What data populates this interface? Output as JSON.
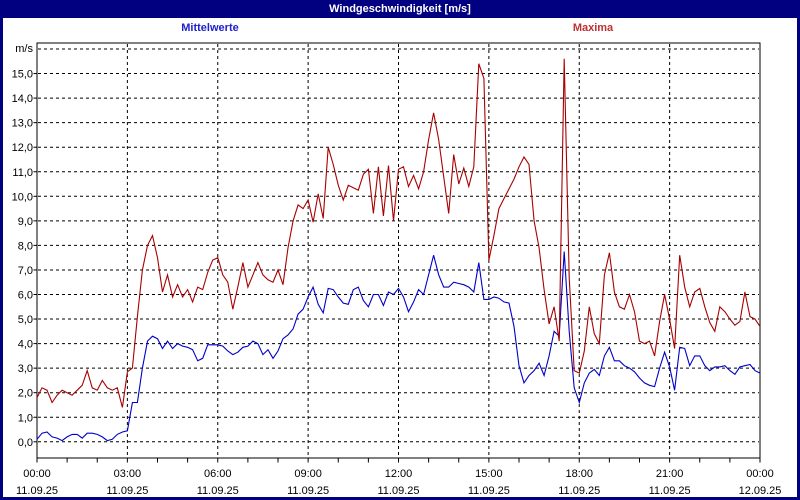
{
  "window": {
    "title": "Windgeschwindigkeit [m/s]"
  },
  "colors": {
    "frame": "#000080",
    "title_bar_bg": "#000080",
    "title_text": "#ffffff",
    "background": "#ffffff",
    "grid": "#000000",
    "axis": "#000000",
    "mean_line": "#0000C8",
    "max_line": "#A80000",
    "mean_label_text": "#2020CC",
    "max_label_text": "#C03030"
  },
  "legend": {
    "mean_label": "Mittelwerte",
    "max_label": "Maxima"
  },
  "chart_data": {
    "type": "line",
    "title": "Windgeschwindigkeit [m/s]",
    "ylabel": "m/s",
    "ylim": [
      0,
      16
    ],
    "y_tick_step": 1,
    "grid": "dashed",
    "legend_position": "top",
    "x_interval_minutes": 10,
    "x_span_hours": 24,
    "x_major_tick_hours": 3,
    "x_minor_tick_hours": 1,
    "y_tick_labels": [
      "0,0",
      "1,0",
      "2,0",
      "3,0",
      "4,0",
      "5,0",
      "6,0",
      "7,0",
      "8,0",
      "9,0",
      "10,0",
      "11,0",
      "12,0",
      "13,0",
      "14,0",
      "15,0"
    ],
    "x_tick_labels": [
      {
        "time": "00:00",
        "date": "11.09.25"
      },
      {
        "time": "03:00",
        "date": "11.09.25"
      },
      {
        "time": "06:00",
        "date": "11.09.25"
      },
      {
        "time": "09:00",
        "date": "11.09.25"
      },
      {
        "time": "12:00",
        "date": "11.09.25"
      },
      {
        "time": "15:00",
        "date": "11.09.25"
      },
      {
        "time": "18:00",
        "date": "11.09.25"
      },
      {
        "time": "21:00",
        "date": "11.09.25"
      },
      {
        "time": "00:00",
        "date": "12.09.25"
      }
    ],
    "series": [
      {
        "name": "Mittelwerte",
        "color": "#0000C8",
        "values": [
          0.1,
          0.35,
          0.4,
          0.2,
          0.15,
          0.05,
          0.2,
          0.3,
          0.3,
          0.15,
          0.35,
          0.35,
          0.3,
          0.2,
          0.05,
          0.1,
          0.3,
          0.4,
          0.45,
          1.6,
          1.6,
          3.0,
          4.1,
          4.3,
          4.2,
          3.8,
          4.1,
          3.8,
          4.0,
          3.9,
          3.85,
          3.75,
          3.3,
          3.4,
          3.95,
          3.95,
          3.95,
          3.9,
          3.7,
          3.55,
          3.65,
          3.85,
          3.9,
          4.1,
          4.0,
          3.55,
          3.75,
          3.4,
          3.7,
          4.2,
          4.35,
          4.6,
          5.2,
          5.4,
          5.9,
          6.3,
          5.6,
          5.25,
          6.25,
          6.2,
          5.9,
          5.65,
          5.6,
          6.2,
          6.3,
          5.75,
          5.5,
          6.0,
          6.0,
          5.55,
          6.1,
          6.0,
          6.25,
          5.9,
          5.3,
          5.7,
          6.2,
          6.0,
          6.8,
          7.6,
          6.8,
          6.3,
          6.3,
          6.5,
          6.45,
          6.4,
          6.3,
          6.1,
          7.3,
          5.8,
          5.8,
          5.9,
          5.85,
          5.7,
          5.65,
          4.7,
          3.1,
          2.4,
          2.7,
          2.9,
          3.2,
          2.7,
          3.5,
          4.5,
          4.3,
          7.75,
          4.5,
          2.2,
          1.6,
          2.4,
          2.8,
          2.95,
          2.7,
          3.5,
          3.85,
          3.3,
          3.3,
          3.1,
          3.0,
          2.85,
          2.6,
          2.4,
          2.3,
          2.25,
          3.0,
          3.65,
          3.05,
          2.1,
          3.85,
          3.8,
          3.1,
          3.5,
          3.5,
          3.1,
          2.9,
          3.05,
          3.05,
          3.1,
          2.9,
          2.75,
          3.05,
          3.1,
          3.15,
          2.9,
          2.8
        ]
      },
      {
        "name": "Maxima",
        "color": "#A80000",
        "values": [
          1.8,
          2.2,
          2.1,
          1.6,
          1.9,
          2.1,
          2.0,
          1.9,
          2.1,
          2.3,
          2.9,
          2.2,
          2.1,
          2.5,
          2.2,
          2.1,
          2.2,
          1.4,
          2.85,
          3.0,
          5.1,
          7.0,
          8.0,
          8.4,
          7.5,
          6.1,
          6.8,
          5.9,
          6.4,
          5.9,
          6.2,
          5.7,
          6.3,
          6.2,
          6.9,
          7.4,
          7.5,
          6.8,
          6.5,
          5.4,
          6.3,
          7.3,
          6.3,
          6.8,
          7.3,
          6.8,
          6.6,
          6.5,
          7.0,
          6.4,
          7.9,
          9.0,
          9.65,
          9.5,
          9.85,
          8.95,
          10.1,
          9.1,
          12.0,
          11.3,
          10.45,
          9.85,
          10.45,
          10.35,
          10.25,
          10.9,
          11.1,
          9.3,
          11.2,
          9.2,
          11.25,
          9.0,
          11.1,
          11.2,
          10.4,
          10.85,
          10.3,
          11.0,
          12.3,
          13.4,
          12.3,
          10.8,
          9.3,
          11.7,
          10.5,
          11.15,
          10.4,
          11.2,
          15.4,
          14.8,
          7.4,
          8.4,
          9.5,
          9.9,
          10.3,
          10.7,
          11.2,
          11.6,
          11.3,
          9.0,
          7.9,
          6.2,
          4.8,
          5.5,
          4.1,
          15.6,
          6.7,
          2.9,
          2.8,
          3.7,
          5.5,
          4.4,
          4.0,
          6.8,
          7.7,
          6.1,
          5.5,
          5.4,
          6.0,
          5.3,
          4.1,
          4.0,
          4.1,
          3.5,
          4.9,
          6.0,
          5.0,
          3.8,
          7.6,
          6.3,
          5.5,
          6.1,
          6.25,
          5.5,
          4.85,
          4.5,
          5.5,
          5.3,
          5.0,
          4.75,
          4.9,
          6.1,
          5.1,
          5.0,
          4.7
        ]
      }
    ]
  }
}
